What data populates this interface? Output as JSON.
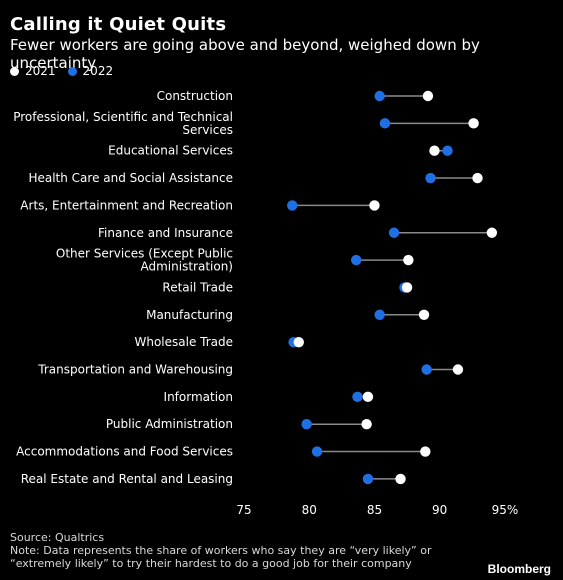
{
  "header": {
    "title": "Calling it Quiet Quits",
    "subtitle": "Fewer workers are going above and beyond, weighed down by uncertainty"
  },
  "legend": [
    {
      "label": "2021",
      "color": "#ffffff"
    },
    {
      "label": "2022",
      "color": "#1f6fe5"
    }
  ],
  "chart_data": {
    "type": "dumbbell",
    "title": "Calling it Quiet Quits",
    "subtitle": "Fewer workers are going above and beyond, weighed down by uncertainty",
    "xlabel": "",
    "ylabel": "",
    "xlim": [
      75,
      97
    ],
    "x_ticks": [
      75,
      80,
      85,
      90,
      95
    ],
    "x_tick_labels": [
      "75",
      "80",
      "85",
      "90",
      "95%"
    ],
    "grid": false,
    "legend_position": "top-left",
    "categories": [
      "Construction",
      "Professional, Scientific and Technical Services",
      "Educational Services",
      "Health Care and Social Assistance",
      "Arts, Entertainment and Recreation",
      "Finance and Insurance",
      "Other Services (Except Public Administration)",
      "Retail Trade",
      "Manufacturing",
      "Wholesale Trade",
      "Transportation and Warehousing",
      "Information",
      "Public Administration",
      "Accommodations and Food Services",
      "Real Estate and Rental and Leasing"
    ],
    "category_label_lines": [
      [
        "Construction"
      ],
      [
        "Professional, Scientific and Technical",
        "Services"
      ],
      [
        "Educational Services"
      ],
      [
        "Health Care and Social Assistance"
      ],
      [
        "Arts, Entertainment and Recreation"
      ],
      [
        "Finance and Insurance"
      ],
      [
        "Other Services (Except Public",
        "Administration)"
      ],
      [
        "Retail Trade"
      ],
      [
        "Manufacturing"
      ],
      [
        "Wholesale Trade"
      ],
      [
        "Transportation and Warehousing"
      ],
      [
        "Information"
      ],
      [
        "Public Administration"
      ],
      [
        "Accommodations and Food Services"
      ],
      [
        "Real Estate and Rental and Leasing"
      ]
    ],
    "series": [
      {
        "name": "2021",
        "color": "#ffffff",
        "values": [
          89.1,
          92.6,
          89.6,
          92.9,
          85.0,
          94.0,
          87.6,
          87.5,
          88.8,
          79.2,
          91.4,
          84.5,
          84.4,
          88.9,
          87.0
        ]
      },
      {
        "name": "2022",
        "color": "#1f6fe5",
        "values": [
          85.4,
          85.8,
          90.6,
          89.3,
          78.7,
          86.5,
          83.6,
          87.3,
          85.4,
          78.8,
          89.0,
          83.7,
          79.8,
          80.6,
          84.5
        ]
      }
    ],
    "connector_color": "#8a8a8a"
  },
  "footer": {
    "source": "Source: Qualtrics",
    "note_line1": "Note: Data represents the share of workers who say they are “very likely” or",
    "note_line2": "“extremely likely” to try their hardest to do a good job for their company",
    "brand": "Bloomberg"
  }
}
